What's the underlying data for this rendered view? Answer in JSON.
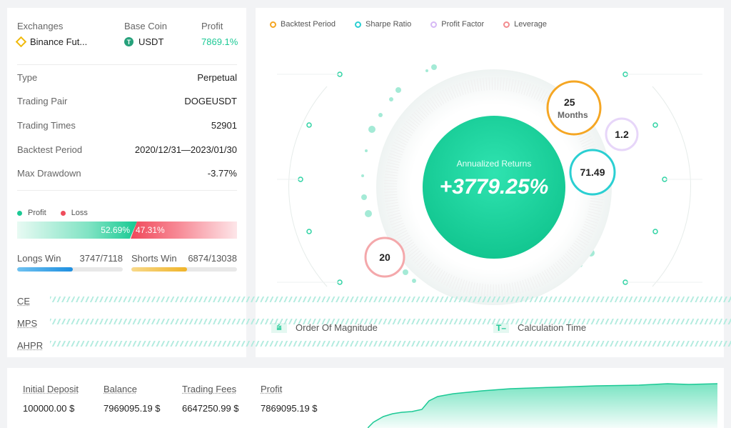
{
  "summary": {
    "exchanges_header": "Exchanges",
    "exchange": "Binance Fut...",
    "base_coin_header": "Base Coin",
    "base_coin": "USDT",
    "profit_header": "Profit",
    "profit": "7869.1%"
  },
  "details": [
    {
      "label": "Type",
      "value": "Perpetual"
    },
    {
      "label": "Trading Pair",
      "value": "DOGEUSDT"
    },
    {
      "label": "Trading Times",
      "value": "52901"
    },
    {
      "label": "Backtest Period",
      "value": "2020/12/31—2023/01/30"
    },
    {
      "label": "Max Drawdown",
      "value": "-3.77%"
    }
  ],
  "profit_loss": {
    "profit_label": "Profit",
    "loss_label": "Loss",
    "profit_pct": "52.69%",
    "loss_pct": "47.31%"
  },
  "wins": {
    "longs_label": "Longs Win",
    "longs_value": "3747/7118",
    "longs_ratio": 0.526,
    "shorts_label": "Shorts Win",
    "shorts_value": "6874/13038",
    "shorts_ratio": 0.527
  },
  "metrics": [
    "CE",
    "MPS",
    "AHPR"
  ],
  "legend": {
    "backtest_period": "Backtest Period",
    "sharpe_ratio": "Sharpe Ratio",
    "profit_factor": "Profit Factor",
    "leverage": "Leverage"
  },
  "center": {
    "annualized_label": "Annualized Returns",
    "annualized_value": "+3779.25%",
    "period_value": "25",
    "period_unit": "Months",
    "profit_factor": "1.2",
    "sharpe_ratio": "71.49",
    "leverage": "20"
  },
  "footer_stats": {
    "order_of_magnitude": "Order Of Magnitude",
    "calculation_time": "Calculation Time"
  },
  "financials": {
    "initial_deposit_label": "Initial Deposit",
    "initial_deposit": "100000.00 $",
    "balance_label": "Balance",
    "balance": "7969095.19 $",
    "fees_label": "Trading Fees",
    "fees": "6647250.99 $",
    "profit_label": "Profit",
    "profit": "7869095.19 $"
  },
  "colors": {
    "green": "#1cc995",
    "red": "#ef4d5c",
    "orange": "#f5a623",
    "teal": "#2bcfd2",
    "purple": "#d6b8f5",
    "pink": "#f28b8e",
    "blue": "#1e8fe0"
  }
}
